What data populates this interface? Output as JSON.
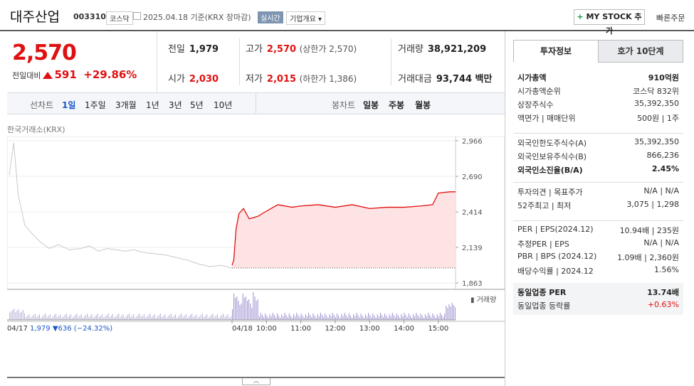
{
  "header": {
    "title": "대주산업",
    "code": "003310",
    "market": "코스닥",
    "as_of": "2025.04.18  기준(KRX 장마감)",
    "realtime": "실시간",
    "company_info": "기업개요 ▾",
    "mystock": "MY STOCK 추가",
    "quick_order": "빠른주문"
  },
  "price": {
    "current": "2,570",
    "change_label": "전일대비",
    "change": "591",
    "change_pct": "+29.86%"
  },
  "stats": {
    "prev_label": "전일",
    "prev": "1,979",
    "open_label": "시가",
    "open": "2,030",
    "high_label": "고가",
    "high": "2,570",
    "upper_limit": "(상한가 2,570)",
    "low_label": "저가",
    "low": "2,015",
    "lower_limit": "(하한가 1,386)",
    "volume_label": "거래량",
    "volume": "38,921,209",
    "amount_label": "거래대금",
    "amount": "93,744",
    "amount_unit": "백만"
  },
  "periods": {
    "label": "선차트",
    "items": [
      "1일",
      "1주일",
      "3개월",
      "1년",
      "3년",
      "5년",
      "10년"
    ],
    "selected": "1일",
    "candle_label": "봉차트",
    "candles": [
      "일봉",
      "주봉",
      "월봉"
    ]
  },
  "chart_source": "한국거래소(KRX)",
  "chart_data": {
    "type": "line",
    "y_ticks": [
      "2,966",
      "2,690",
      "2,414",
      "2,139",
      "1,863"
    ],
    "ylim": [
      1863,
      2966
    ],
    "x_ticks": [
      "04/18",
      "10:00",
      "11:00",
      "12:00",
      "13:00",
      "14:00",
      "15:00"
    ],
    "volume_label": "거래량",
    "prev_day_series": {
      "name": "04/17",
      "x": [
        0,
        0.02,
        0.04,
        0.07,
        0.1,
        0.14,
        0.18,
        0.22,
        0.27,
        0.32,
        0.36,
        0.4,
        0.44,
        0.48,
        0.52,
        0.56,
        0.6,
        0.65,
        0.7,
        0.75,
        0.8,
        0.85,
        0.9,
        0.95,
        1.0
      ],
      "y": [
        2700,
        2950,
        2550,
        2310,
        2250,
        2180,
        2130,
        2160,
        2120,
        2130,
        2150,
        2110,
        2130,
        2120,
        2110,
        2120,
        2100,
        2090,
        2080,
        2060,
        2040,
        2010,
        1990,
        2000,
        1979
      ]
    },
    "today_series": {
      "name": "04/18",
      "times": [
        "09:00",
        "09:03",
        "09:07",
        "09:12",
        "09:20",
        "09:30",
        "09:45",
        "10:00",
        "10:20",
        "10:45",
        "11:00",
        "11:30",
        "12:00",
        "12:30",
        "13:00",
        "13:30",
        "14:00",
        "14:30",
        "14:50",
        "15:00",
        "15:20",
        "15:30"
      ],
      "y": [
        2000,
        2040,
        2280,
        2400,
        2440,
        2360,
        2380,
        2420,
        2470,
        2450,
        2460,
        2470,
        2450,
        2470,
        2440,
        2450,
        2450,
        2460,
        2470,
        2560,
        2570,
        2570
      ]
    },
    "prev_close": 1979,
    "prev_day_footer": {
      "date": "04/17",
      "close": "1,979",
      "change": "▼636",
      "pct": "(−24.32%)"
    }
  },
  "panel": {
    "tabs": [
      "투자정보",
      "호가 10단계"
    ],
    "g1": [
      {
        "k": "시가총액",
        "v": "910억원",
        "bold": true
      },
      {
        "k": "시가총액순위",
        "v": "코스닥 832위"
      },
      {
        "k": "상장주식수",
        "v": "35,392,350"
      },
      {
        "k": "액면가 | 매매단위",
        "v": "500원 | 1주"
      }
    ],
    "g2": [
      {
        "k": "외국인한도주식수(A)",
        "v": "35,392,350"
      },
      {
        "k": "외국인보유주식수(B)",
        "v": "866,236"
      },
      {
        "k": "외국인소진율(B/A)",
        "v": "2.45%",
        "bold": true
      }
    ],
    "g3": [
      {
        "k": "투자의견 | 목표주가",
        "v": "N/A | N/A"
      },
      {
        "k": "52주최고 | 최저",
        "v": "3,075 | 1,298"
      }
    ],
    "g4": [
      {
        "k": "PER | EPS(2024.12)",
        "v": "10.94배 | 235원"
      },
      {
        "k": "추정PER | EPS",
        "v": "N/A | N/A"
      },
      {
        "k": "PBR | BPS (2024.12)",
        "v": "1.09배 | 2,360원"
      },
      {
        "k": "배당수익률 | 2024.12",
        "v": "1.56%"
      }
    ],
    "g5": [
      {
        "k": "동일업종 PER",
        "v": "13.74배",
        "bold": true
      },
      {
        "k": "동일업종 등락률",
        "v": "+0.63%",
        "red": true
      }
    ]
  }
}
